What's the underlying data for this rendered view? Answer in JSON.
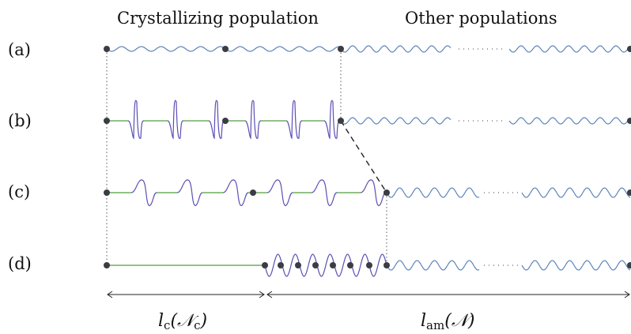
{
  "headers": {
    "crystallizing": "Crystallizing population",
    "other": "Other populations"
  },
  "rows": [
    {
      "label": "(a)"
    },
    {
      "label": "(b)"
    },
    {
      "label": "(c)"
    },
    {
      "label": "(d)"
    }
  ],
  "lengths": {
    "lc_main": "l",
    "lc_sub": "c",
    "lc_arg": "𝒩",
    "lc_arg_sub": "c",
    "lam_main": "l",
    "lam_sub": "am",
    "lam_arg": "𝒩"
  },
  "colors": {
    "amorphous_chain": "#5b84b8",
    "folded_chain": "#5a4fb4",
    "crystal_stem": "#6fae5d",
    "node": "#3c3c44"
  }
}
